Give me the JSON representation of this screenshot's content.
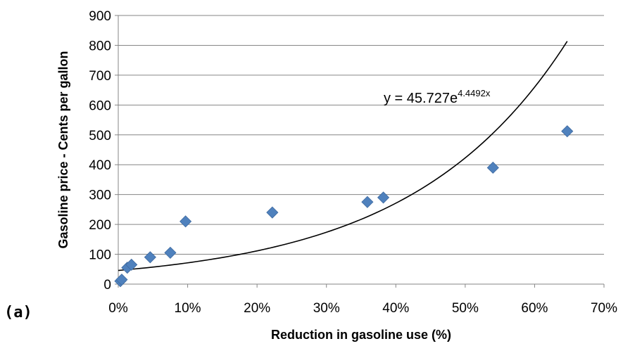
{
  "panel_label": "(a)",
  "chart_data": {
    "type": "scatter",
    "title": "",
    "xlabel": "Reduction in gasoline use (%)",
    "ylabel": "Gasoline price - Cents per gallon",
    "xlim": [
      0,
      0.7
    ],
    "ylim": [
      0,
      900
    ],
    "x_ticks": [
      0,
      0.1,
      0.2,
      0.3,
      0.4,
      0.5,
      0.6,
      0.7
    ],
    "x_tick_labels": [
      "0%",
      "10%",
      "20%",
      "30%",
      "40%",
      "50%",
      "60%",
      "70%"
    ],
    "y_ticks": [
      0,
      100,
      200,
      300,
      400,
      500,
      600,
      700,
      800,
      900
    ],
    "y_tick_labels": [
      "0",
      "100",
      "200",
      "300",
      "400",
      "500",
      "600",
      "700",
      "800",
      "900"
    ],
    "grid": "horizontal",
    "marker": "diamond",
    "marker_color": "#4f81bd",
    "series": [
      {
        "x": [
          0.003,
          0.005,
          0.013,
          0.019,
          0.046,
          0.075,
          0.097,
          0.222,
          0.359,
          0.382,
          0.54,
          0.647
        ],
        "y": [
          10,
          15,
          55,
          65,
          90,
          105,
          210,
          240,
          275,
          290,
          390,
          512
        ]
      }
    ],
    "trendline": {
      "type": "exponential",
      "a": 45.727,
      "b": 4.4492,
      "x_range": [
        0,
        0.647
      ],
      "color": "#000000",
      "equation": {
        "prefix": "y = 45.727e",
        "exponent": "4.4492x"
      }
    }
  }
}
